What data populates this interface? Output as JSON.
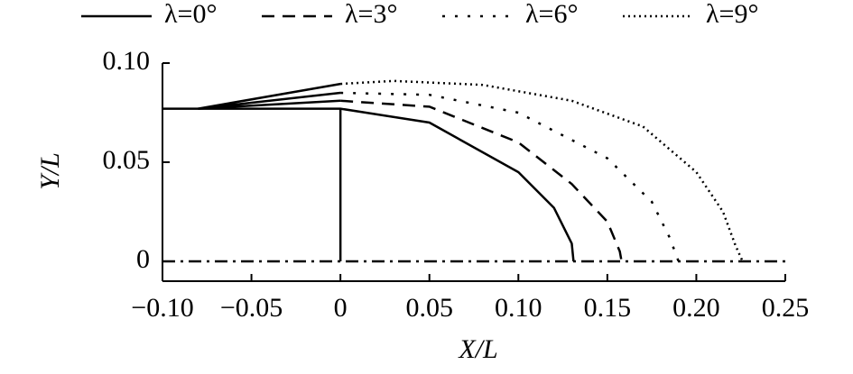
{
  "chart_data": {
    "type": "line",
    "xlabel": "X/L",
    "ylabel": "Y/L",
    "xlim": [
      -0.1,
      0.25
    ],
    "ylim": [
      -0.01,
      0.1
    ],
    "xticks": [
      {
        "value": -0.1,
        "label": "−0.10"
      },
      {
        "value": -0.05,
        "label": "−0.05"
      },
      0,
      0.05,
      {
        "value": 0.1,
        "label": "0.10"
      },
      0.15,
      {
        "value": 0.2,
        "label": "0.20"
      },
      0.25
    ],
    "yticks": [
      0,
      0.05,
      {
        "value": 0.1,
        "label": "0.10"
      }
    ],
    "legend": "top",
    "series": [
      {
        "name": "λ=0°",
        "color": "#000000",
        "style": "solid",
        "x": [
          -0.1,
          0,
          0.05,
          0.1,
          0.12,
          0.13,
          0.131
        ],
        "y": [
          0.077,
          0.077,
          0.07,
          0.045,
          0.027,
          0.009,
          0
        ]
      },
      {
        "name": "λ=3°",
        "color": "#000000",
        "style": "dashed",
        "x": [
          0,
          0.05,
          0.1,
          0.13,
          0.15,
          0.157,
          0.158
        ],
        "y": [
          0.081,
          0.078,
          0.06,
          0.039,
          0.02,
          0.005,
          0
        ]
      },
      {
        "name": "λ=6°",
        "color": "#000000",
        "style": "dotted",
        "x": [
          0,
          0.05,
          0.1,
          0.15,
          0.175,
          0.185,
          0.19
        ],
        "y": [
          0.085,
          0.084,
          0.075,
          0.052,
          0.03,
          0.012,
          0
        ]
      },
      {
        "name": "λ=9°",
        "color": "#000000",
        "style": "densedot",
        "x": [
          0,
          0.03,
          0.08,
          0.13,
          0.17,
          0.2,
          0.215,
          0.222,
          0.226
        ],
        "y": [
          0.0895,
          0.091,
          0.089,
          0.081,
          0.068,
          0.045,
          0.025,
          0.008,
          0
        ]
      },
      {
        "color": "#000000",
        "style": "solid",
        "x": [
          -0.08,
          0,
          null,
          -0.08,
          0,
          null,
          -0.08,
          0,
          null,
          0,
          0
        ],
        "y": [
          0.077,
          0.081,
          null,
          0.077,
          0.085,
          null,
          0.077,
          0.0895,
          null,
          0,
          0.077
        ]
      },
      {
        "color": "#000000",
        "style": "dashdot",
        "x": [
          -0.1,
          0.25
        ],
        "y": [
          0,
          0
        ]
      }
    ]
  }
}
